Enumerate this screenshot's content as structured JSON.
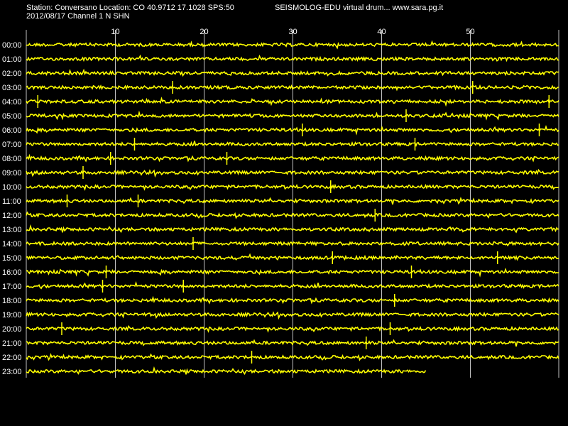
{
  "header": {
    "station_line": "Station: Conversano Location: CO 40.9712 17.1028 SPS:50",
    "program_line": "SEISMOLOG-EDU virtual drum... www.sara.pg.it",
    "date_line": "2012/08/17  Channel 1 N SHN"
  },
  "colors": {
    "background": "#000000",
    "trace": "#ffff00",
    "grid": "#c0c0c0",
    "text": "#ffffff"
  },
  "chart_data": {
    "type": "line",
    "title": "",
    "xlabel": "",
    "ylabel": "",
    "x_ticks": [
      "10",
      "20",
      "30",
      "40",
      "50"
    ],
    "xlim": [
      0,
      60
    ],
    "grid_x": true,
    "rows": [
      {
        "label": "00:00",
        "end": 60,
        "spikes": []
      },
      {
        "label": "01:00",
        "end": 60,
        "spikes": []
      },
      {
        "label": "02:00",
        "end": 60,
        "spikes": []
      },
      {
        "label": "03:00",
        "end": 60,
        "spikes": [
          16.5,
          50.3
        ]
      },
      {
        "label": "04:00",
        "end": 60,
        "spikes": [
          1.3,
          58.9
        ]
      },
      {
        "label": "05:00",
        "end": 60,
        "spikes": [
          42.8
        ]
      },
      {
        "label": "06:00",
        "end": 60,
        "spikes": [
          31.1,
          57.8
        ]
      },
      {
        "label": "07:00",
        "end": 60,
        "spikes": [
          12.2,
          43.8
        ]
      },
      {
        "label": "08:00",
        "end": 60,
        "spikes": [
          9.5,
          22.6
        ]
      },
      {
        "label": "09:00",
        "end": 60,
        "spikes": [
          6.4
        ]
      },
      {
        "label": "10:00",
        "end": 60,
        "spikes": [
          34.3
        ]
      },
      {
        "label": "11:00",
        "end": 60,
        "spikes": [
          12.6,
          4.6
        ]
      },
      {
        "label": "12:00",
        "end": 60,
        "spikes": [
          39.3
        ]
      },
      {
        "label": "13:00",
        "end": 60,
        "spikes": []
      },
      {
        "label": "14:00",
        "end": 60,
        "spikes": [
          18.8
        ]
      },
      {
        "label": "15:00",
        "end": 60,
        "spikes": [
          34.5,
          53.1
        ]
      },
      {
        "label": "16:00",
        "end": 60,
        "spikes": [
          9.0,
          43.4
        ]
      },
      {
        "label": "17:00",
        "end": 60,
        "spikes": [
          17.7,
          8.6
        ]
      },
      {
        "label": "18:00",
        "end": 60,
        "spikes": [
          41.5
        ]
      },
      {
        "label": "19:00",
        "end": 60,
        "spikes": []
      },
      {
        "label": "20:00",
        "end": 60,
        "spikes": [
          4.0,
          41.0
        ]
      },
      {
        "label": "21:00",
        "end": 60,
        "spikes": [
          38.3
        ]
      },
      {
        "label": "22:00",
        "end": 60,
        "spikes": [
          25.4
        ]
      },
      {
        "label": "23:00",
        "end": 45,
        "spikes": []
      }
    ]
  }
}
